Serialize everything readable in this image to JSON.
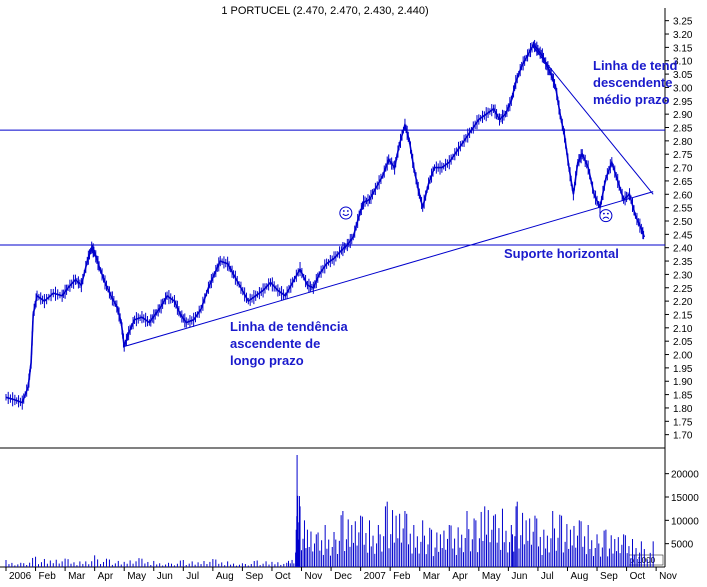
{
  "chart_data": {
    "type": "line",
    "title": "1 PORTUCEL (2.470, 2.470, 2.430, 2.440)",
    "price_axis": {
      "ylim": [
        1.68,
        3.26
      ],
      "ticks": [
        "3.25",
        "3.20",
        "3.15",
        "3.10",
        "3.05",
        "3.00",
        "2.95",
        "2.90",
        "2.85",
        "2.80",
        "2.75",
        "2.70",
        "2.65",
        "2.60",
        "2.55",
        "2.50",
        "2.45",
        "2.40",
        "2.35",
        "2.30",
        "2.25",
        "2.20",
        "2.15",
        "2.10",
        "2.05",
        "2.00",
        "1.95",
        "1.90",
        "1.85",
        "1.80",
        "1.75",
        "1.70"
      ]
    },
    "volume_axis": {
      "ylim": [
        0,
        24000
      ],
      "ticks": [
        {
          "label": "20000",
          "v": 20000
        },
        {
          "label": "15000",
          "v": 15000
        },
        {
          "label": "10000",
          "v": 10000
        },
        {
          "label": "5000",
          "v": 5000
        }
      ],
      "unit_label": "x 1000"
    },
    "x_months": [
      "2006",
      "Feb",
      "Mar",
      "Apr",
      "May",
      "Jun",
      "Jul",
      "Aug",
      "Sep",
      "Oct",
      "Nov",
      "Dec",
      "2007",
      "Feb",
      "Mar",
      "Apr",
      "May",
      "Jun",
      "Jul",
      "Aug",
      "Sep",
      "Oct",
      "Nov"
    ],
    "series": [
      {
        "values": [
          [
            0,
            1.84
          ],
          [
            0.3,
            1.83
          ],
          [
            0.55,
            1.82
          ],
          [
            0.75,
            1.88
          ],
          [
            0.85,
            1.97
          ],
          [
            0.92,
            2.15
          ],
          [
            1.05,
            2.22
          ],
          [
            1.3,
            2.2
          ],
          [
            1.6,
            2.23
          ],
          [
            1.9,
            2.22
          ],
          [
            2.1,
            2.25
          ],
          [
            2.35,
            2.28
          ],
          [
            2.55,
            2.26
          ],
          [
            2.75,
            2.35
          ],
          [
            2.9,
            2.4
          ],
          [
            3.0,
            2.38
          ],
          [
            3.15,
            2.33
          ],
          [
            3.35,
            2.27
          ],
          [
            3.55,
            2.22
          ],
          [
            3.75,
            2.18
          ],
          [
            3.9,
            2.12
          ],
          [
            4.0,
            2.03
          ],
          [
            4.15,
            2.08
          ],
          [
            4.35,
            2.13
          ],
          [
            4.6,
            2.14
          ],
          [
            4.85,
            2.12
          ],
          [
            5.05,
            2.15
          ],
          [
            5.25,
            2.18
          ],
          [
            5.45,
            2.22
          ],
          [
            5.7,
            2.2
          ],
          [
            5.9,
            2.15
          ],
          [
            6.1,
            2.12
          ],
          [
            6.35,
            2.13
          ],
          [
            6.6,
            2.17
          ],
          [
            6.85,
            2.25
          ],
          [
            7.05,
            2.3
          ],
          [
            7.25,
            2.35
          ],
          [
            7.5,
            2.34
          ],
          [
            7.7,
            2.3
          ],
          [
            7.95,
            2.25
          ],
          [
            8.2,
            2.2
          ],
          [
            8.45,
            2.22
          ],
          [
            8.7,
            2.24
          ],
          [
            8.95,
            2.27
          ],
          [
            9.2,
            2.24
          ],
          [
            9.45,
            2.22
          ],
          [
            9.7,
            2.27
          ],
          [
            9.95,
            2.32
          ],
          [
            10.2,
            2.26
          ],
          [
            10.4,
            2.25
          ],
          [
            10.6,
            2.3
          ],
          [
            10.85,
            2.34
          ],
          [
            11.1,
            2.36
          ],
          [
            11.35,
            2.39
          ],
          [
            11.55,
            2.41
          ],
          [
            11.75,
            2.44
          ],
          [
            11.95,
            2.52
          ],
          [
            12.1,
            2.57
          ],
          [
            12.3,
            2.58
          ],
          [
            12.5,
            2.62
          ],
          [
            12.75,
            2.67
          ],
          [
            12.95,
            2.73
          ],
          [
            13.15,
            2.7
          ],
          [
            13.3,
            2.78
          ],
          [
            13.5,
            2.86
          ],
          [
            13.65,
            2.8
          ],
          [
            13.8,
            2.7
          ],
          [
            13.95,
            2.62
          ],
          [
            14.1,
            2.55
          ],
          [
            14.3,
            2.64
          ],
          [
            14.5,
            2.7
          ],
          [
            14.75,
            2.7
          ],
          [
            15.0,
            2.72
          ],
          [
            15.25,
            2.76
          ],
          [
            15.5,
            2.8
          ],
          [
            15.75,
            2.84
          ],
          [
            16.0,
            2.88
          ],
          [
            16.25,
            2.9
          ],
          [
            16.5,
            2.92
          ],
          [
            16.7,
            2.88
          ],
          [
            16.9,
            2.9
          ],
          [
            17.1,
            2.95
          ],
          [
            17.25,
            3.02
          ],
          [
            17.45,
            3.08
          ],
          [
            17.65,
            3.12
          ],
          [
            17.85,
            3.16
          ],
          [
            18.0,
            3.14
          ],
          [
            18.15,
            3.12
          ],
          [
            18.3,
            3.08
          ],
          [
            18.45,
            3.05
          ],
          [
            18.6,
            3.0
          ],
          [
            18.75,
            2.9
          ],
          [
            18.9,
            2.82
          ],
          [
            19.05,
            2.7
          ],
          [
            19.2,
            2.6
          ],
          [
            19.35,
            2.72
          ],
          [
            19.5,
            2.75
          ],
          [
            19.7,
            2.7
          ],
          [
            19.9,
            2.6
          ],
          [
            20.1,
            2.55
          ],
          [
            20.3,
            2.66
          ],
          [
            20.5,
            2.72
          ],
          [
            20.7,
            2.65
          ],
          [
            20.9,
            2.58
          ],
          [
            21.1,
            2.6
          ],
          [
            21.3,
            2.52
          ],
          [
            21.5,
            2.47
          ],
          [
            21.6,
            2.44
          ]
        ]
      }
    ],
    "volume": [
      [
        0,
        1500
      ],
      [
        0.5,
        900
      ],
      [
        1.0,
        2200
      ],
      [
        1.5,
        1400
      ],
      [
        2.0,
        1800
      ],
      [
        2.5,
        1200
      ],
      [
        3.0,
        2500
      ],
      [
        3.5,
        1600
      ],
      [
        4.0,
        1100
      ],
      [
        4.5,
        1900
      ],
      [
        5.0,
        1300
      ],
      [
        5.5,
        900
      ],
      [
        6.0,
        1500
      ],
      [
        6.5,
        1000
      ],
      [
        7.0,
        1700
      ],
      [
        7.5,
        1200
      ],
      [
        8.0,
        800
      ],
      [
        8.5,
        1400
      ],
      [
        9.0,
        1100
      ],
      [
        9.5,
        900
      ],
      [
        9.8,
        3000
      ],
      [
        9.85,
        24000
      ],
      [
        9.95,
        13000
      ],
      [
        10.2,
        8000
      ],
      [
        10.5,
        7000
      ],
      [
        10.8,
        9000
      ],
      [
        11.1,
        7500
      ],
      [
        11.4,
        12000
      ],
      [
        11.7,
        9000
      ],
      [
        12.0,
        11000
      ],
      [
        12.3,
        10000
      ],
      [
        12.6,
        9000
      ],
      [
        12.9,
        14000
      ],
      [
        13.2,
        11000
      ],
      [
        13.5,
        12000
      ],
      [
        13.8,
        9000
      ],
      [
        14.1,
        10000
      ],
      [
        14.4,
        8000
      ],
      [
        14.7,
        7000
      ],
      [
        15.0,
        9000
      ],
      [
        15.3,
        8500
      ],
      [
        15.6,
        12000
      ],
      [
        15.9,
        10000
      ],
      [
        16.2,
        13000
      ],
      [
        16.5,
        11000
      ],
      [
        16.8,
        12500
      ],
      [
        17.1,
        9000
      ],
      [
        17.3,
        14000
      ],
      [
        17.6,
        10000
      ],
      [
        17.9,
        11000
      ],
      [
        18.2,
        8000
      ],
      [
        18.5,
        12000
      ],
      [
        18.8,
        11000
      ],
      [
        19.1,
        8000
      ],
      [
        19.4,
        10000
      ],
      [
        19.7,
        9000
      ],
      [
        20.0,
        7000
      ],
      [
        20.3,
        8000
      ],
      [
        20.6,
        6000
      ],
      [
        20.9,
        7000
      ],
      [
        21.2,
        6000
      ],
      [
        21.5,
        5500
      ]
    ],
    "trendlines": [
      {
        "from": [
          4.0,
          2.03
        ],
        "to": [
          21.9,
          2.61
        ]
      },
      {
        "from": [
          17.85,
          3.15
        ],
        "to": [
          21.9,
          2.6
        ]
      }
    ],
    "horizontal_lines": [
      2.84,
      2.41
    ],
    "annotations": {
      "long_trend": [
        "Linha de tendência",
        "ascendente de",
        "longo prazo"
      ],
      "short_trend": [
        "Linha de tend",
        "descendente",
        "médio prazo"
      ],
      "support": "Suporte horizontal"
    },
    "smileys": [
      {
        "kind": "happy",
        "x": 11.5,
        "y": 2.53
      },
      {
        "kind": "sad",
        "x": 20.3,
        "y": 2.52
      }
    ],
    "colors": {
      "price": "#0000cc",
      "annotation": "#1a1acc",
      "axis": "#000000",
      "background": "#ffffff"
    }
  }
}
